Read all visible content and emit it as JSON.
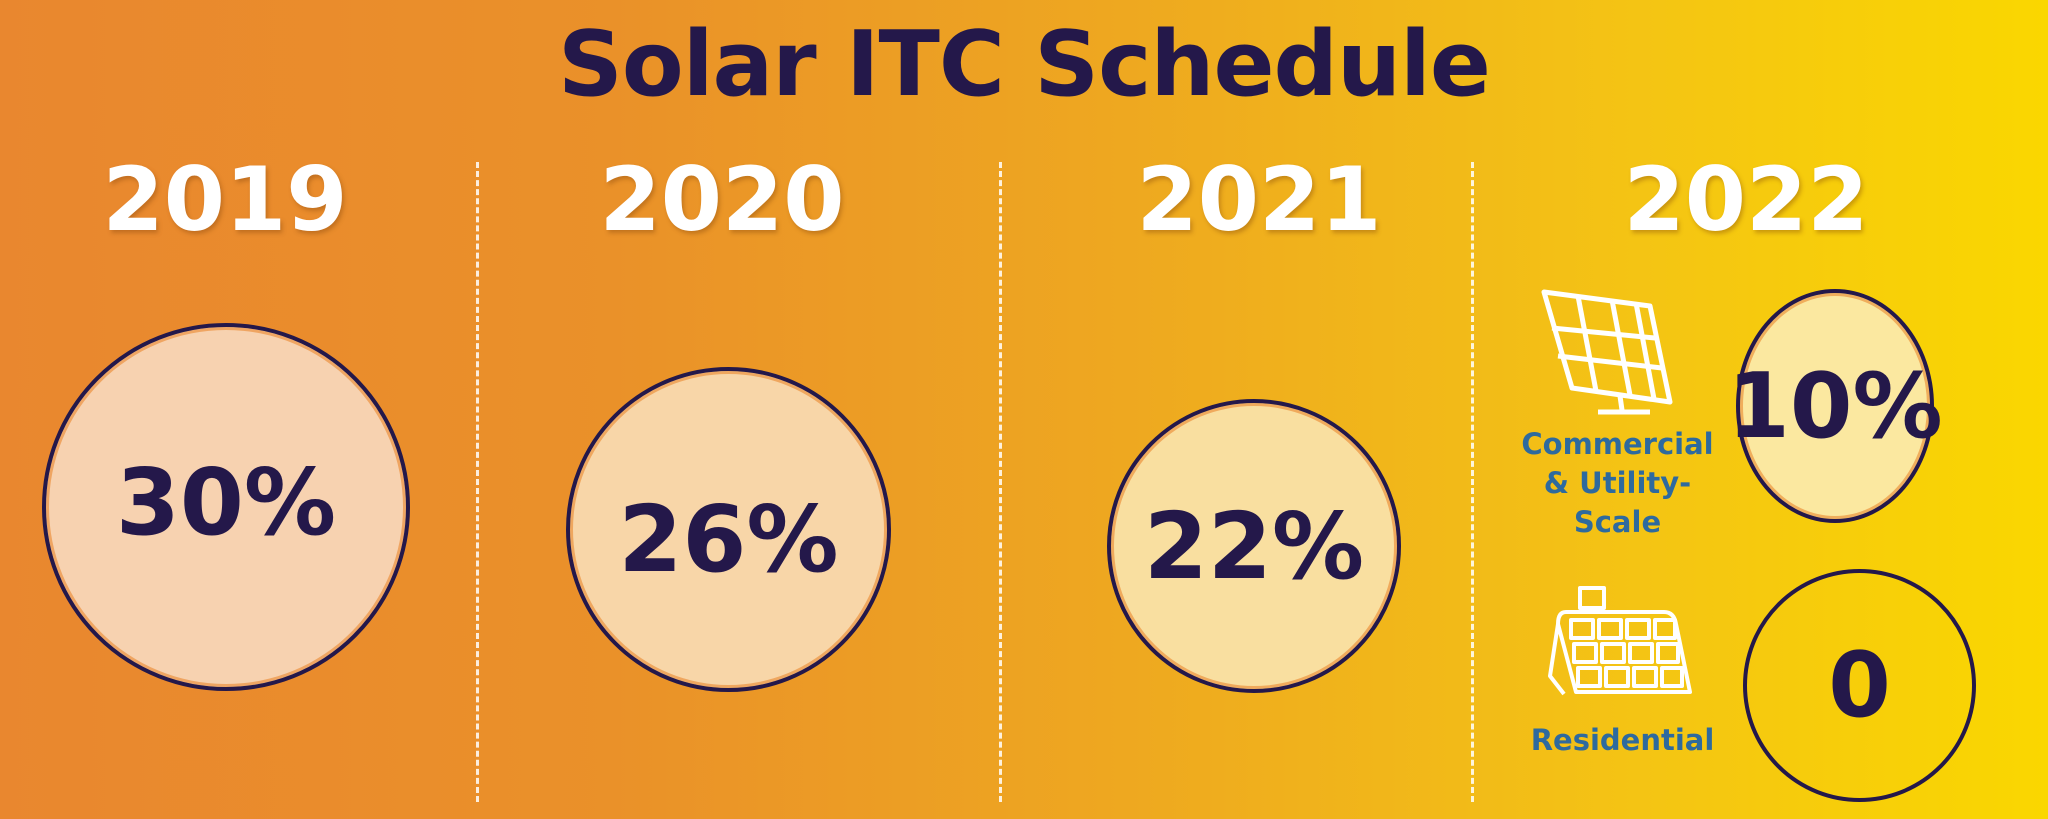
{
  "title": "Solar ITC Schedule",
  "chart_data": {
    "type": "bubble",
    "title": "Solar ITC Schedule",
    "categories": [
      "2019",
      "2020",
      "2021",
      "2022"
    ],
    "series": [
      {
        "category": "2019",
        "values": [
          {
            "label": "30%",
            "value": 30
          }
        ]
      },
      {
        "category": "2020",
        "values": [
          {
            "label": "26%",
            "value": 26
          }
        ]
      },
      {
        "category": "2021",
        "values": [
          {
            "label": "22%",
            "value": 22
          }
        ]
      },
      {
        "category": "2022",
        "values": [
          {
            "segment": "Commercial & Utility-Scale",
            "label": "10%",
            "value": 10
          },
          {
            "segment": "Residential",
            "label": "0",
            "value": 0
          }
        ]
      }
    ]
  },
  "years": [
    "2019",
    "2020",
    "2021",
    "2022"
  ],
  "rates": {
    "y2019": "30%",
    "y2020": "26%",
    "y2021": "22%",
    "y2022_commercial": "10%",
    "y2022_residential": "0"
  },
  "segments": {
    "commercial_line1": "Commercial",
    "commercial_line2": "& Utility-",
    "commercial_line3": "Scale",
    "residential": "Residential"
  },
  "colors": {
    "title": "#24184A",
    "circle_2019": "#F7D2B0",
    "circle_2020": "#F8D6A8",
    "circle_2021": "#F9DFA0",
    "circle_2022": "#FBE8A0",
    "label_blue": "#2E6A9E"
  },
  "icons": [
    "commercial-solar-panel-icon",
    "residential-roof-solar-icon"
  ]
}
